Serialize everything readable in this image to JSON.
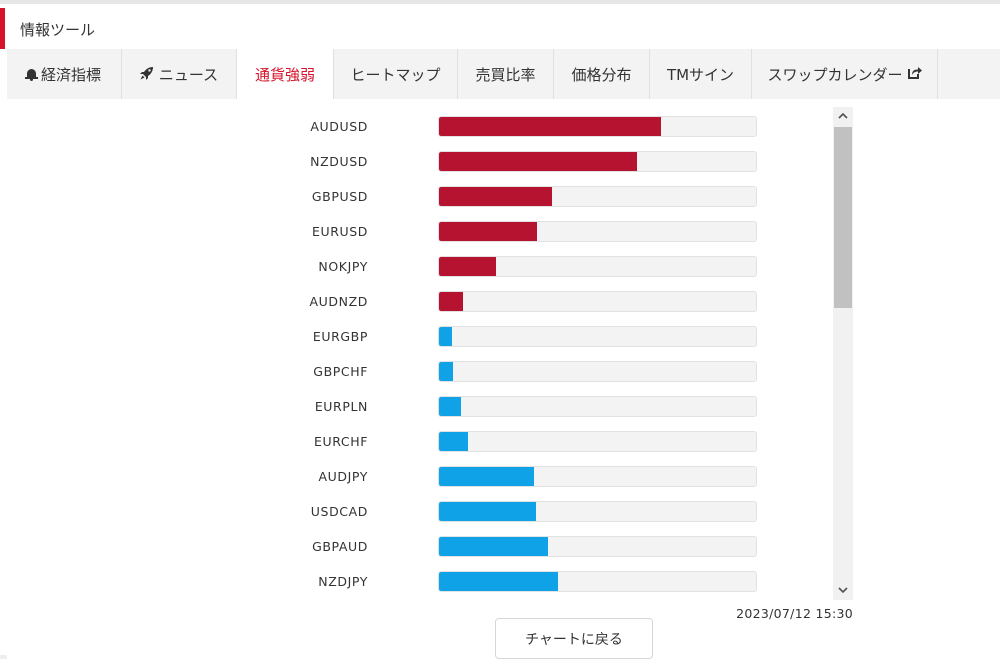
{
  "header": {
    "title": "情報ツール"
  },
  "tabs": [
    {
      "label": "経済指標",
      "icon": "bell-icon"
    },
    {
      "label": "ニュース",
      "icon": "rocket-icon"
    },
    {
      "label": "通貨強弱",
      "icon": ""
    },
    {
      "label": "ヒートマップ",
      "icon": ""
    },
    {
      "label": "売買比率",
      "icon": ""
    },
    {
      "label": "価格分布",
      "icon": ""
    },
    {
      "label": "TMサイン",
      "icon": ""
    },
    {
      "label": "スワップカレンダー",
      "icon": "external-link-icon"
    }
  ],
  "active_tab": "通貨強弱",
  "colors": {
    "accent": "#d7132a",
    "strong": "#b5132f",
    "weak": "#10a2e6",
    "track": "#f3f3f3"
  },
  "strength_rows": [
    {
      "pair": "AUDUSD",
      "level": 0.7,
      "direction": "strong"
    },
    {
      "pair": "NZDUSD",
      "level": 0.625,
      "direction": "strong"
    },
    {
      "pair": "GBPUSD",
      "level": 0.355,
      "direction": "strong"
    },
    {
      "pair": "EURUSD",
      "level": 0.31,
      "direction": "strong"
    },
    {
      "pair": "NOKJPY",
      "level": 0.18,
      "direction": "strong"
    },
    {
      "pair": "AUDNZD",
      "level": 0.075,
      "direction": "strong"
    },
    {
      "pair": "EURGBP",
      "level": 0.04,
      "direction": "weak"
    },
    {
      "pair": "GBPCHF",
      "level": 0.045,
      "direction": "weak"
    },
    {
      "pair": "EURPLN",
      "level": 0.07,
      "direction": "weak"
    },
    {
      "pair": "EURCHF",
      "level": 0.09,
      "direction": "weak"
    },
    {
      "pair": "AUDJPY",
      "level": 0.3,
      "direction": "weak"
    },
    {
      "pair": "USDCAD",
      "level": 0.305,
      "direction": "weak"
    },
    {
      "pair": "GBPAUD",
      "level": 0.345,
      "direction": "weak"
    },
    {
      "pair": "NZDJPY",
      "level": 0.375,
      "direction": "weak"
    }
  ],
  "scrollbar": {
    "up_icon": "chevron-up-icon",
    "down_icon": "chevron-down-icon"
  },
  "timestamp": "2023/07/12 15:30",
  "back_button": {
    "label": "チャートに戻る"
  }
}
